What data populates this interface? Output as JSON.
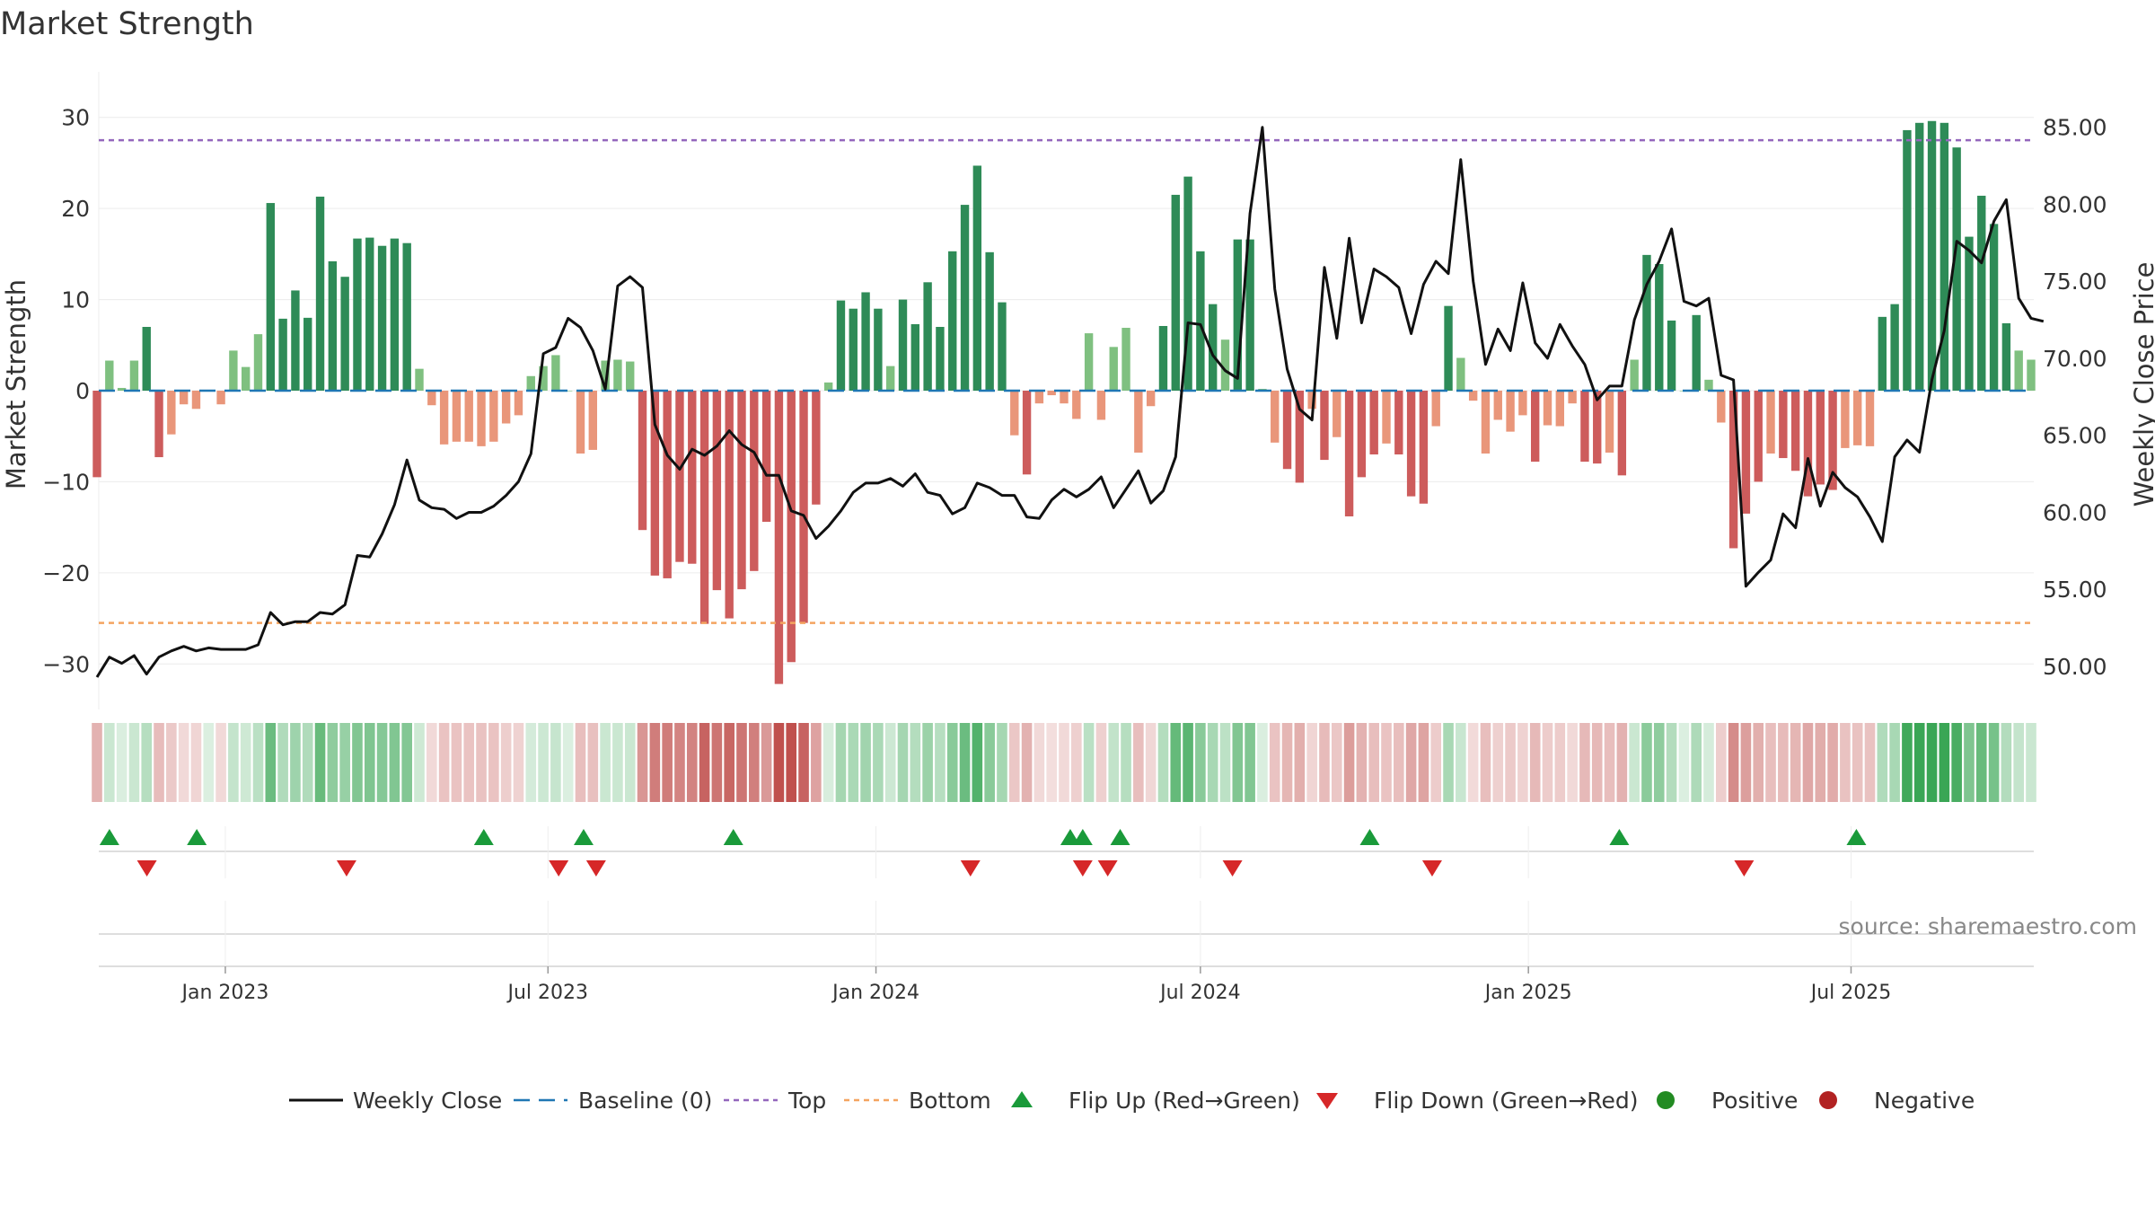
{
  "title": "Market Strength",
  "source": "source: sharemaestro.com",
  "colors": {
    "pos_dark": "#2e8b57",
    "pos_light": "#7fc080",
    "neg_dark": "#cd5c5c",
    "neg_light": "#e9967a",
    "line": "#111111",
    "baseline": "#1f77b4",
    "top": "#9467bd",
    "bottom": "#f4a460",
    "flip_up": "#1a9a3a",
    "flip_down": "#d62728",
    "positive": "#228b22",
    "negative": "#b22222"
  },
  "legend": [
    {
      "key": "line",
      "label": "Weekly Close"
    },
    {
      "key": "baseline",
      "label": "Baseline (0)"
    },
    {
      "key": "top",
      "label": "Top"
    },
    {
      "key": "bottom",
      "label": "Bottom"
    },
    {
      "key": "flipup",
      "label": "Flip Up (Red→Green)"
    },
    {
      "key": "flipdown",
      "label": "Flip Down (Green→Red)"
    },
    {
      "key": "positive",
      "label": "Positive"
    },
    {
      "key": "negative",
      "label": "Negative"
    }
  ],
  "chart_data": {
    "type": "bar",
    "title": "Market Strength",
    "ylabel": "Market Strength",
    "y2label": "Weekly Close Price",
    "ylim": [
      -35,
      35
    ],
    "y2lim": [
      47.2,
      88.6
    ],
    "x_start": "2022-10-21",
    "x_end": "2025-10-10",
    "y_ticks": [
      30,
      20,
      10,
      0,
      -10,
      -20,
      -30
    ],
    "y_tick_labels": [
      "30",
      "20",
      "10",
      "0",
      "−10",
      "−20",
      "−30"
    ],
    "y2_ticks": [
      85,
      80,
      75,
      70,
      65,
      60,
      55,
      50
    ],
    "y2_tick_labels": [
      "85.00",
      "80.00",
      "75.00",
      "70.00",
      "65.00",
      "60.00",
      "55.00",
      "50.00"
    ],
    "x_tick_dates": [
      "2023-01-01",
      "2023-07-01",
      "2024-01-01",
      "2024-07-01",
      "2025-01-01",
      "2025-07-01"
    ],
    "x_tick_labels": [
      "Jan 2023",
      "Jul 2023",
      "Jan 2024",
      "Jul 2024",
      "Jan 2025",
      "Jul 2025"
    ],
    "top_level": 27.5,
    "bottom_level": -25.5,
    "baseline": 0,
    "strength": [
      -9.5,
      3.3,
      0.3,
      3.3,
      7,
      -7.3,
      -4.8,
      -1.5,
      -2,
      0,
      -1.5,
      4.4,
      2.6,
      6.2,
      20.6,
      7.9,
      11,
      8,
      21.3,
      14.2,
      12.5,
      16.7,
      16.8,
      15.9,
      16.7,
      16.2,
      2.4,
      -1.6,
      -5.9,
      -5.6,
      -5.6,
      -6.1,
      -5.6,
      -3.6,
      -2.7,
      1.6,
      2.7,
      3.9,
      0,
      -6.9,
      -6.5,
      3.3,
      3.4,
      3.2,
      -15.3,
      -20.3,
      -20.6,
      -18.8,
      -19,
      -25.6,
      -21.9,
      -25,
      -21.8,
      -19.8,
      -14.4,
      -32.2,
      -29.8,
      -25.5,
      -12.5,
      0.9,
      9.9,
      9,
      10.8,
      9,
      2.7,
      10,
      7.3,
      11.9,
      7,
      15.3,
      20.4,
      24.7,
      15.2,
      9.7,
      -4.9,
      -9.2,
      -1.4,
      -0.5,
      -1.4,
      -3.1,
      6.3,
      -3.2,
      4.8,
      6.9,
      -6.8,
      -1.7,
      7.1,
      21.5,
      23.5,
      15.3,
      9.5,
      5.6,
      16.6,
      16.6,
      0.2,
      -5.7,
      -8.6,
      -10.1,
      -2,
      -7.6,
      -5.1,
      -13.8,
      -9.5,
      -7,
      -5.8,
      -7,
      -11.6,
      -12.4,
      -3.9,
      9.3,
      3.6,
      -1.1,
      -6.9,
      -3.2,
      -4.5,
      -2.7,
      -7.8,
      -3.8,
      -3.9,
      -1.4,
      -7.8,
      -8,
      -6.8,
      -9.3,
      3.4,
      14.9,
      13.9,
      7.7,
      0,
      8.3,
      1.2,
      -3.5,
      -17.3,
      -13.5,
      -10,
      -6.9,
      -7.4,
      -8.8,
      -11.6,
      -10.3,
      -10.9,
      -6.3,
      -6,
      -6.1,
      8.1,
      9.5,
      28.6,
      29.4,
      29.6,
      29.4,
      26.7,
      16.9,
      21.4,
      18.3,
      7.4,
      4.4,
      3.4
    ],
    "close": [
      49.3,
      50.6,
      50.2,
      50.7,
      49.5,
      50.6,
      51,
      51.3,
      51,
      51.2,
      51.1,
      51.1,
      51.1,
      51.4,
      53.5,
      52.7,
      52.9,
      52.9,
      53.5,
      53.4,
      54,
      57.2,
      57.1,
      58.6,
      60.5,
      63.4,
      60.8,
      60.3,
      60.2,
      59.6,
      60,
      60,
      60.4,
      61.1,
      62,
      63.8,
      70.3,
      70.7,
      72.6,
      72,
      70.5,
      68,
      74.7,
      75.3,
      74.6,
      65.7,
      63.7,
      62.8,
      64.1,
      63.7,
      64.3,
      65.3,
      64.4,
      63.9,
      62.4,
      62.4,
      60.1,
      59.8,
      58.3,
      59.1,
      60.1,
      61.3,
      61.9,
      61.9,
      62.2,
      61.7,
      62.5,
      61.3,
      61.1,
      59.9,
      60.3,
      61.9,
      61.6,
      61.1,
      61.1,
      59.7,
      59.6,
      60.8,
      61.5,
      61,
      61.5,
      62.3,
      60.3,
      61.5,
      62.7,
      60.6,
      61.4,
      63.6,
      72.3,
      72.2,
      70.2,
      69.2,
      68.7,
      79.4,
      85,
      74.5,
      69.3,
      66.7,
      66,
      75.9,
      71.3,
      77.8,
      72.3,
      75.8,
      75.3,
      74.6,
      71.6,
      74.8,
      76.3,
      75.5,
      82.9,
      75,
      69.6,
      71.9,
      70.5,
      74.9,
      71,
      70,
      72.2,
      70.8,
      69.6,
      67.3,
      68.2,
      68.2,
      72.5,
      74.8,
      76.3,
      78.4,
      73.7,
      73.4,
      73.9,
      68.9,
      68.6,
      55.2,
      56.1,
      56.9,
      59.9,
      59,
      63.5,
      60.4,
      62.6,
      61.6,
      61,
      59.7,
      58.1,
      63.6,
      64.7,
      63.9,
      68.6,
      71.8,
      77.6,
      77,
      76.2,
      78.9,
      80.3,
      73.9,
      72.6,
      72.4
    ],
    "flip_up_dates": [
      "2022-10-28",
      "2022-12-16",
      "2023-05-26",
      "2023-07-21",
      "2023-10-13",
      "2024-04-19",
      "2024-04-26",
      "2024-05-17",
      "2024-10-04",
      "2025-02-21",
      "2025-07-04"
    ],
    "flip_down_dates": [
      "2022-11-18",
      "2023-03-10",
      "2023-07-07",
      "2023-07-28",
      "2024-02-23",
      "2024-04-26",
      "2024-05-10",
      "2024-07-19",
      "2024-11-08",
      "2025-05-02"
    ]
  }
}
